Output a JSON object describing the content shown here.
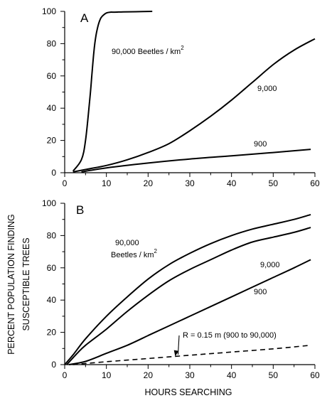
{
  "ylabel_lines": [
    "PERCENT  POPULATION  FINDING",
    "SUSCEPTIBLE  TREES"
  ],
  "xlabel": "HOURS SEARCHING",
  "chart_data": [
    {
      "type": "line",
      "panel_label": "A",
      "xlim": [
        0,
        60
      ],
      "ylim": [
        0,
        100
      ],
      "xticks": [
        0,
        10,
        20,
        30,
        40,
        50,
        60
      ],
      "yticks": [
        0,
        20,
        40,
        60,
        80,
        100
      ],
      "series": [
        {
          "name": "90,000 Beetles / km",
          "name_superscript": "2",
          "x": [
            2,
            4,
            5,
            6,
            6.5,
            7,
            7.5,
            8,
            8.5,
            9,
            10,
            11,
            12,
            14,
            17,
            21
          ],
          "y": [
            1,
            8,
            20,
            45,
            60,
            75,
            85,
            91,
            95,
            97,
            99,
            99.5,
            99.5,
            99.7,
            99.8,
            100
          ]
        },
        {
          "name": "9,000",
          "x": [
            2,
            5,
            10,
            15,
            20,
            25,
            30,
            35,
            40,
            45,
            50,
            55,
            60
          ],
          "y": [
            0.5,
            2,
            4.5,
            8,
            12.5,
            18,
            26,
            35,
            45,
            56,
            67,
            76,
            83
          ]
        },
        {
          "name": "900",
          "x": [
            4,
            10,
            20,
            30,
            40,
            50,
            59
          ],
          "y": [
            0.5,
            3,
            6,
            8.5,
            10.5,
            12.5,
            14.5
          ]
        }
      ]
    },
    {
      "type": "line",
      "panel_label": "B",
      "xlim": [
        0,
        60
      ],
      "ylim": [
        0,
        100
      ],
      "xticks": [
        0,
        10,
        20,
        30,
        40,
        50,
        60
      ],
      "yticks": [
        0,
        20,
        40,
        60,
        80,
        100
      ],
      "series": [
        {
          "name": "90,000",
          "name_line2": "Beetles / km",
          "name_superscript": "2",
          "x": [
            0,
            2,
            5,
            10,
            15,
            20,
            25,
            30,
            35,
            40,
            45,
            50,
            55,
            59
          ],
          "y": [
            0,
            6,
            16,
            30,
            42,
            53,
            62,
            69,
            75,
            80,
            84,
            87,
            90,
            93
          ]
        },
        {
          "name": "9,000",
          "x": [
            0.5,
            3,
            5,
            10,
            15,
            20,
            25,
            30,
            35,
            40,
            45,
            50,
            55,
            59
          ],
          "y": [
            0,
            7,
            12,
            22,
            33,
            43,
            52,
            59,
            65,
            71,
            76,
            79,
            82,
            85
          ]
        },
        {
          "name": "900",
          "x": [
            1,
            5,
            10,
            15,
            20,
            25,
            30,
            35,
            40,
            45,
            50,
            55,
            59
          ],
          "y": [
            0,
            2,
            7,
            12,
            18,
            24,
            30,
            36,
            42,
            48,
            54,
            60,
            65
          ]
        },
        {
          "name": "R = 0.15 m (900 to 90,000)",
          "style": "dashed",
          "x": [
            2,
            10,
            20,
            30,
            40,
            50,
            59
          ],
          "y": [
            0,
            1.8,
            3.8,
            5.8,
            7.8,
            9.8,
            12
          ]
        }
      ]
    }
  ]
}
